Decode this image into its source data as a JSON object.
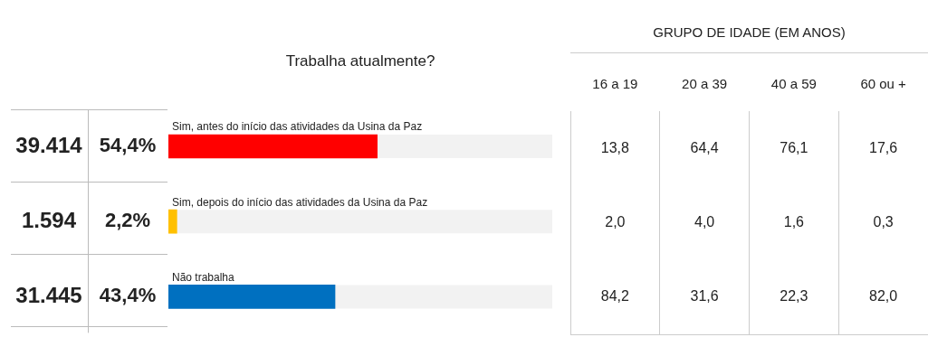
{
  "chart_data": [
    {
      "type": "bar",
      "orientation": "horizontal",
      "title": "Trabalha atualmente?",
      "categories": [
        "Sim, antes do início das atividades da Usina da Paz",
        "Sim, depois do início das atividades da Usina da Paz",
        "Não trabalha"
      ],
      "values": [
        54.4,
        2.2,
        43.4
      ],
      "colors": [
        "#ff0000",
        "#ffc000",
        "#0070c0"
      ],
      "value_labels": [
        "54,4%",
        "2,2%",
        "43,4%"
      ],
      "xlim": [
        0,
        100
      ],
      "tick_labels": false,
      "legend": false,
      "annotations": [
        "39.414",
        "1.594",
        "31.445"
      ]
    },
    {
      "type": "other",
      "title": "GRUPO DE IDADE (EM ANOS)",
      "categories": [
        "16 a 19",
        "20 a 39",
        "40 a 59",
        "60 ou +"
      ],
      "annotations": [
        "13,8",
        "64,4",
        "76,1",
        "17,6",
        "2,0",
        "4,0",
        "1,6",
        "0,3",
        "84,2",
        "31,6",
        "22,3",
        "82,0"
      ]
    }
  ]
}
